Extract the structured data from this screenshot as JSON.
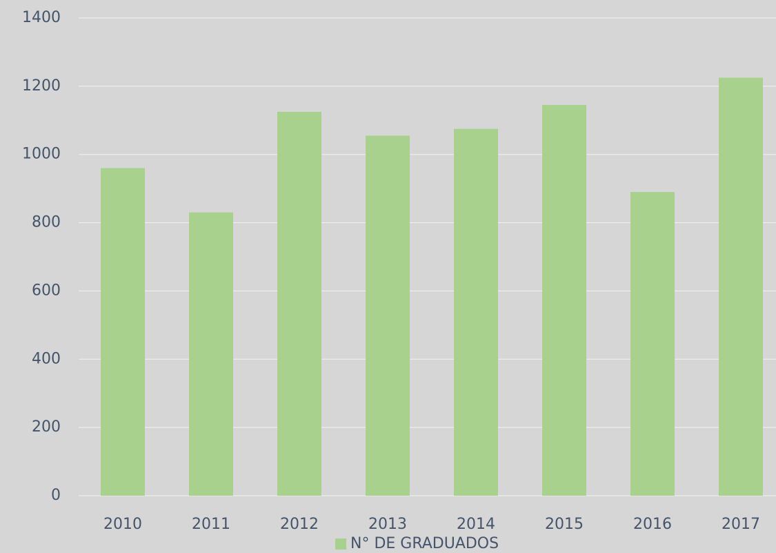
{
  "chart_data": {
    "type": "bar",
    "categories": [
      "2010",
      "2011",
      "2012",
      "2013",
      "2014",
      "2015",
      "2016",
      "2017"
    ],
    "series": [
      {
        "name": "N° DE GRADUADOS",
        "color": "#a9d18e",
        "values": [
          960,
          830,
          1125,
          1055,
          1075,
          1145,
          890,
          1225
        ]
      }
    ],
    "ylim": [
      0,
      1400
    ],
    "yticks": [
      0,
      200,
      400,
      600,
      800,
      1000,
      1200,
      1400
    ],
    "grid": true,
    "legend": "bottom"
  }
}
